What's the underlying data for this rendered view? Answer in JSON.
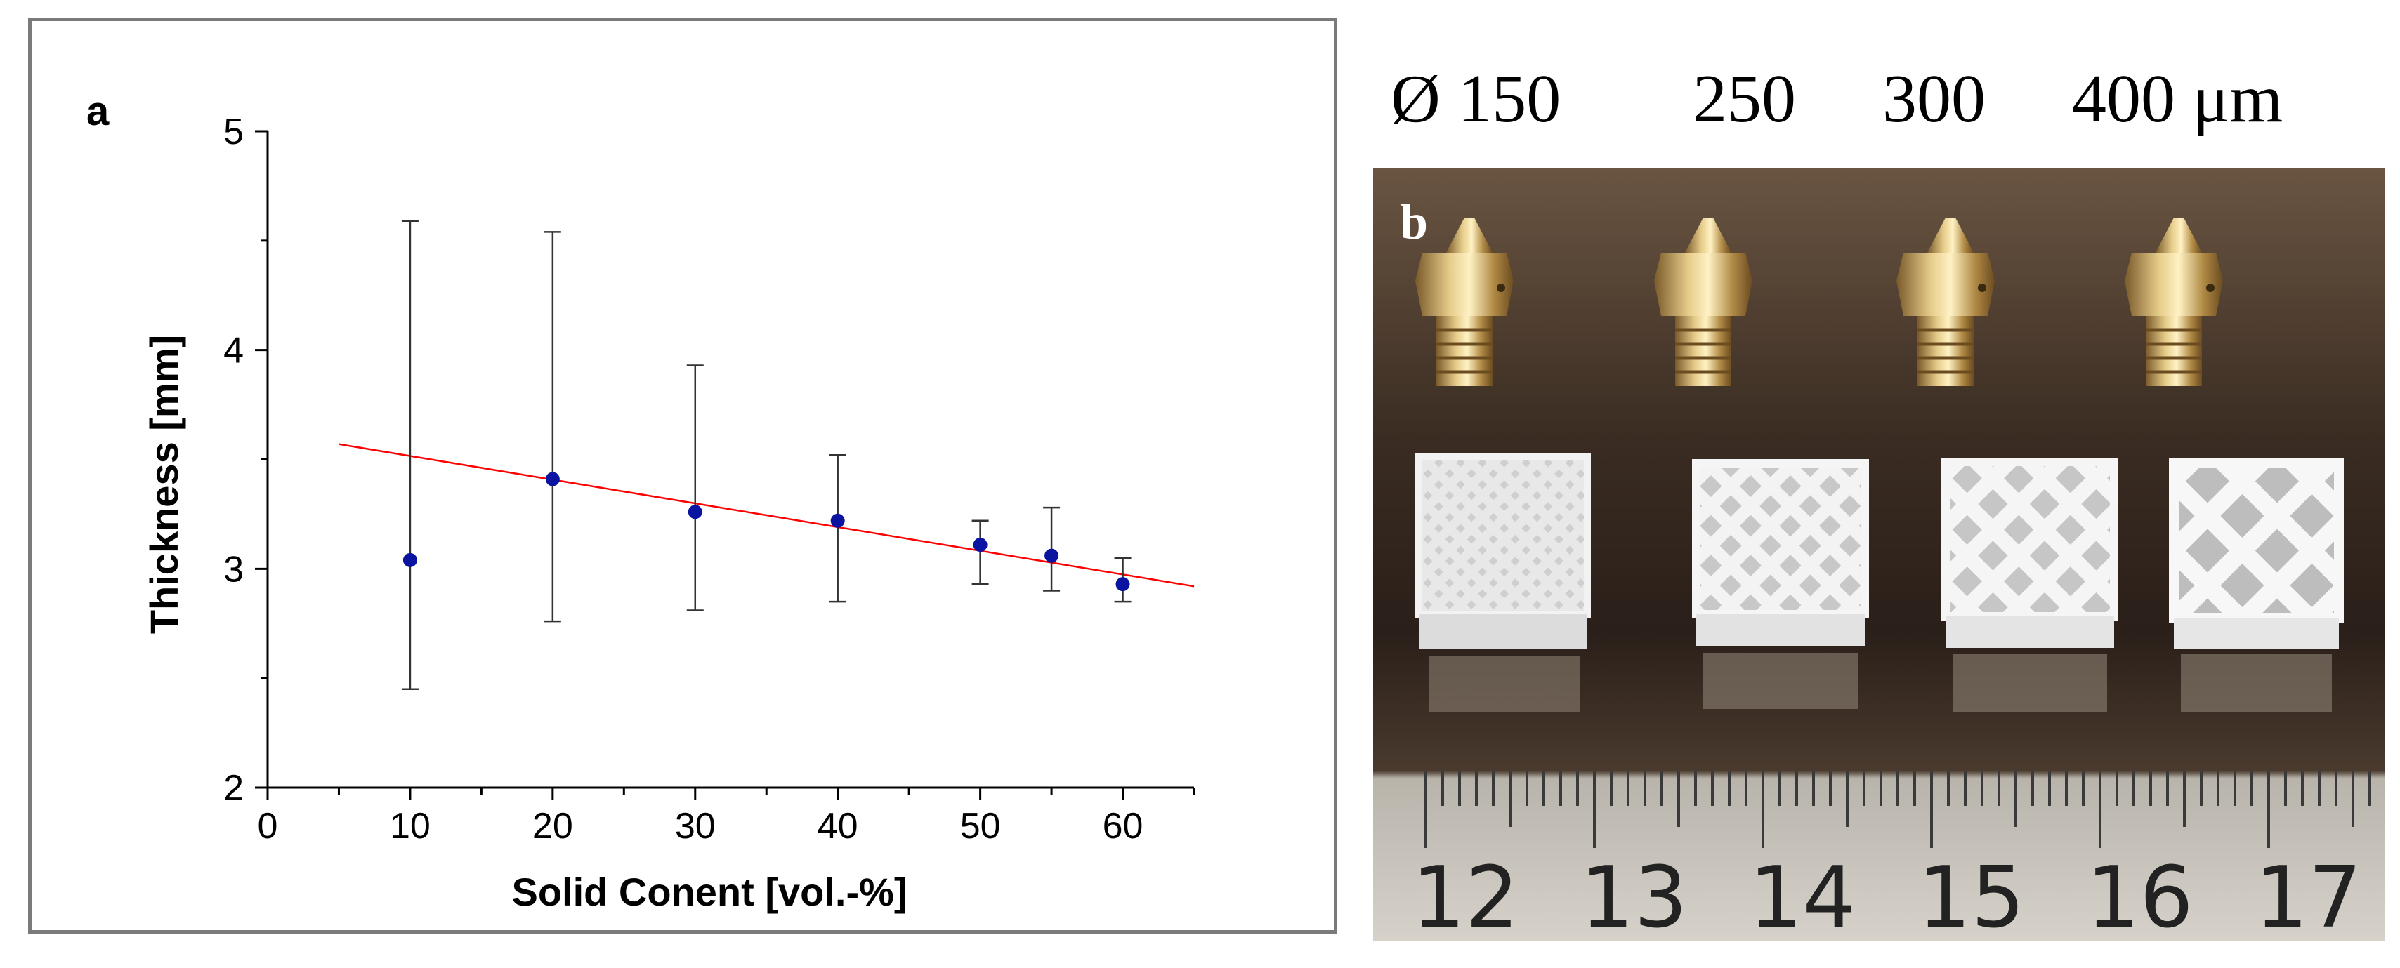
{
  "panel_a": {
    "letter": "a"
  },
  "panel_b": {
    "letter": "b",
    "nozzle_labels": [
      "Ø 150",
      "250",
      "300",
      "400 μm"
    ],
    "ruler_numbers": [
      "12",
      "13",
      "14",
      "15",
      "16",
      "17"
    ]
  },
  "colors": {
    "points": "#0a14a0",
    "fit_line": "#ff0000",
    "frame": "#7a7a7a"
  },
  "chart_data": {
    "type": "scatter",
    "title": "",
    "xlabel": "Solid Conent [vol.-%]",
    "ylabel": "Thickness [mm]",
    "xlim": [
      0,
      65
    ],
    "ylim": [
      2,
      5
    ],
    "xticks": [
      0,
      10,
      20,
      30,
      40,
      50,
      60
    ],
    "yticks": [
      2,
      3,
      4,
      5
    ],
    "grid": false,
    "series": [
      {
        "name": "Thickness",
        "x": [
          10,
          20,
          30,
          40,
          50,
          55,
          60
        ],
        "y": [
          3.04,
          3.41,
          3.26,
          3.22,
          3.11,
          3.06,
          2.93
        ],
        "err_low": [
          2.45,
          2.76,
          2.81,
          2.85,
          2.93,
          2.9,
          2.85
        ],
        "err_high": [
          4.59,
          4.54,
          3.93,
          3.52,
          3.22,
          3.28,
          3.05
        ]
      }
    ],
    "fit": {
      "type": "linear",
      "x": [
        5,
        65
      ],
      "y": [
        3.57,
        2.92
      ]
    }
  }
}
